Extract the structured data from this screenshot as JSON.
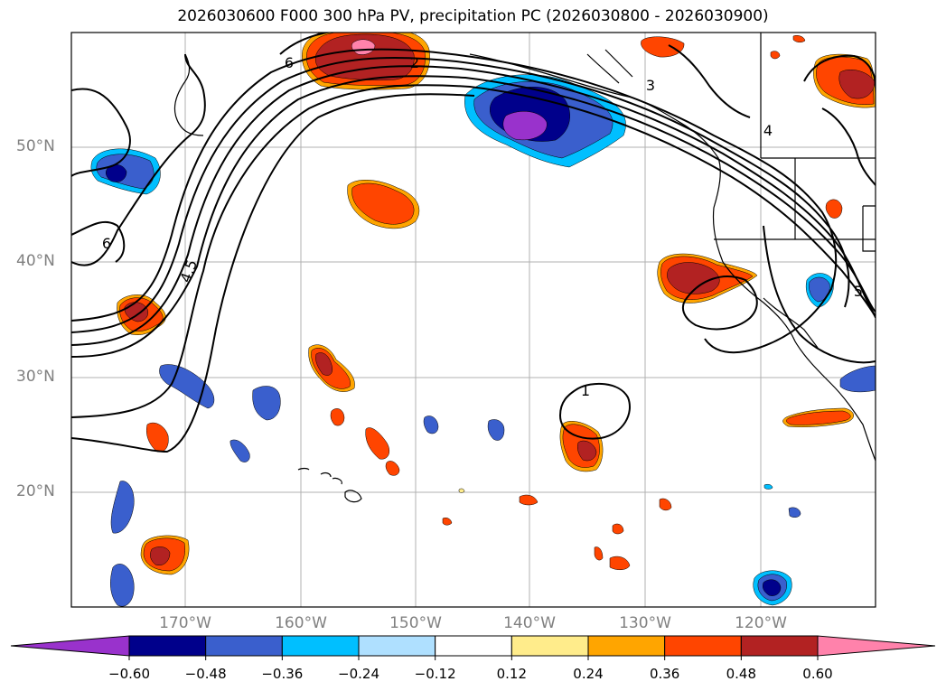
{
  "title": "2026030600 F000 300 hPa PV, precipitation PC (2026030800 - 2026030900)",
  "lat_labels": [
    "50°N",
    "40°N",
    "30°N",
    "20°N"
  ],
  "lon_labels": [
    "170°W",
    "160°W",
    "150°W",
    "140°W",
    "130°W",
    "120°W"
  ],
  "contour_labels": [
    "1",
    "2",
    "3",
    "4",
    "4.5",
    "5",
    "6"
  ],
  "colorbar": {
    "colors": [
      "#9932cc",
      "#00008b",
      "#3a5fcd",
      "#00bfff",
      "#afe0ff",
      "#ffffff",
      "#ffec8b",
      "#ffa500",
      "#ff4500",
      "#b22222",
      "#ff82ab"
    ],
    "ticks": [
      "−0.60",
      "−0.48",
      "−0.36",
      "−0.24",
      "−0.12",
      "0.12",
      "0.24",
      "0.36",
      "0.48",
      "0.60"
    ]
  }
}
